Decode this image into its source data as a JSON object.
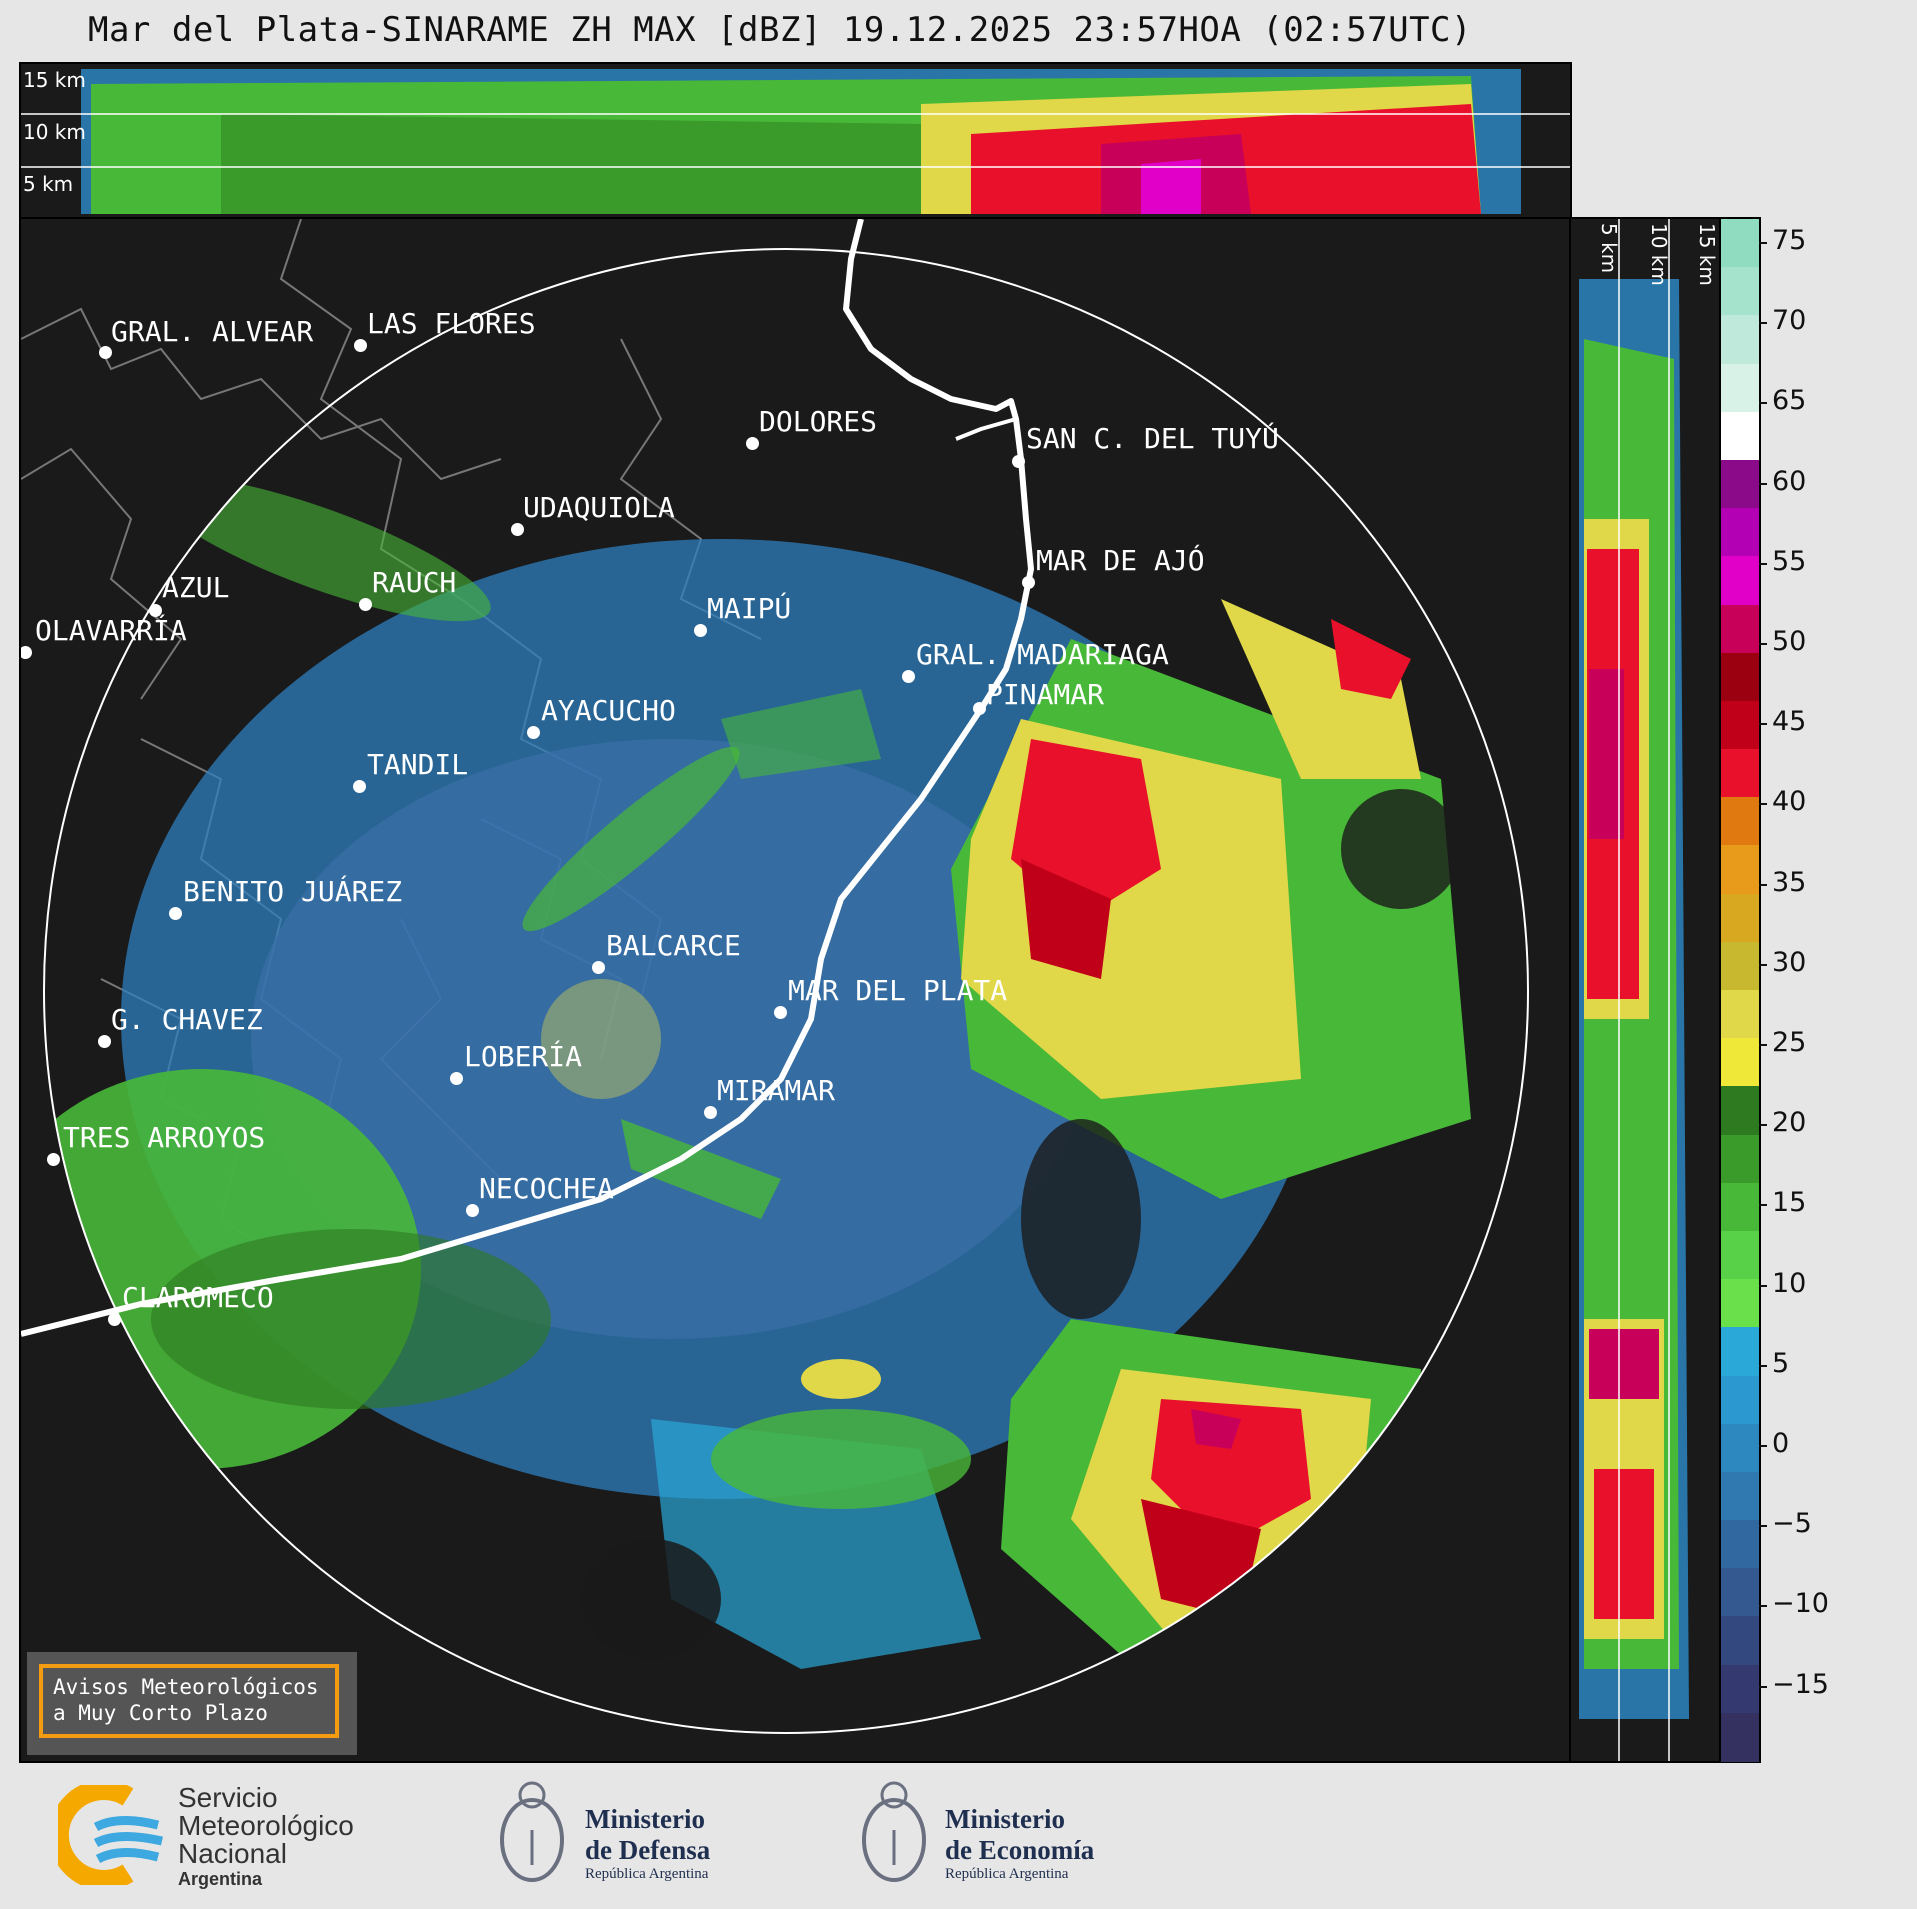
{
  "title": "Mar del Plata-SINARAME ZH MAX [dBZ] 19.12.2025 23:57HOA (02:57UTC)",
  "top_panel": {
    "labels": [
      "15 km",
      "10 km",
      "5 km"
    ]
  },
  "right_panel": {
    "labels": [
      "5 km",
      "10 km",
      "15 km"
    ]
  },
  "cities": [
    {
      "name": "GRAL. ALVEAR"
    },
    {
      "name": "LAS FLORES"
    },
    {
      "name": "DOLORES"
    },
    {
      "name": "SAN C. DEL TUYÚ"
    },
    {
      "name": "UDAQUIOLA"
    },
    {
      "name": "MAR DE AJÓ"
    },
    {
      "name": "AZUL"
    },
    {
      "name": "RAUCH"
    },
    {
      "name": "MAIPÚ"
    },
    {
      "name": "OLAVARRÍA"
    },
    {
      "name": "GRAL. MADARIAGA"
    },
    {
      "name": "PINAMAR"
    },
    {
      "name": "AYACUCHO"
    },
    {
      "name": "TANDIL"
    },
    {
      "name": "BENITO JUÁREZ"
    },
    {
      "name": "BALCARCE"
    },
    {
      "name": "MAR DEL PLATA"
    },
    {
      "name": "G. CHAVEZ"
    },
    {
      "name": "LOBERÍA"
    },
    {
      "name": "MIRAMAR"
    },
    {
      "name": "TRES ARROYOS"
    },
    {
      "name": "NECOCHEA"
    },
    {
      "name": "CLAROMECO"
    }
  ],
  "colorbar": {
    "unit": "dBZ",
    "ticks": [
      "75",
      "70",
      "65",
      "60",
      "55",
      "50",
      "45",
      "40",
      "35",
      "30",
      "25",
      "20",
      "15",
      "10",
      "5",
      "0",
      "−5",
      "−10",
      "−15"
    ],
    "colors": [
      "#8fdcc0",
      "#a6e3cc",
      "#bfeadb",
      "#d9f2e8",
      "#ffffff",
      "#8a0a8a",
      "#b400b4",
      "#e000c8",
      "#c8005a",
      "#9a0010",
      "#c00018",
      "#e8102a",
      "#e07a10",
      "#e89a1a",
      "#d8a820",
      "#c8b830",
      "#e0d848",
      "#f0e838",
      "#2e7a20",
      "#3a9a2a",
      "#48b838",
      "#58d048",
      "#6ae04a",
      "#2aa8d8",
      "#2c98d0",
      "#2e88c0",
      "#3078b0",
      "#3268a0",
      "#345890",
      "#344880",
      "#343a70",
      "#343060"
    ]
  },
  "avisos": {
    "line1": "Avisos Meteorológicos",
    "line2": "a Muy Corto Plazo"
  },
  "footer": {
    "smn": [
      "Servicio",
      "Meteorológico",
      "Nacional",
      "Argentina"
    ],
    "defensa": [
      "Ministerio",
      "de Defensa",
      "República Argentina"
    ],
    "economia": [
      "Ministerio",
      "de Economía",
      "República Argentina"
    ]
  }
}
